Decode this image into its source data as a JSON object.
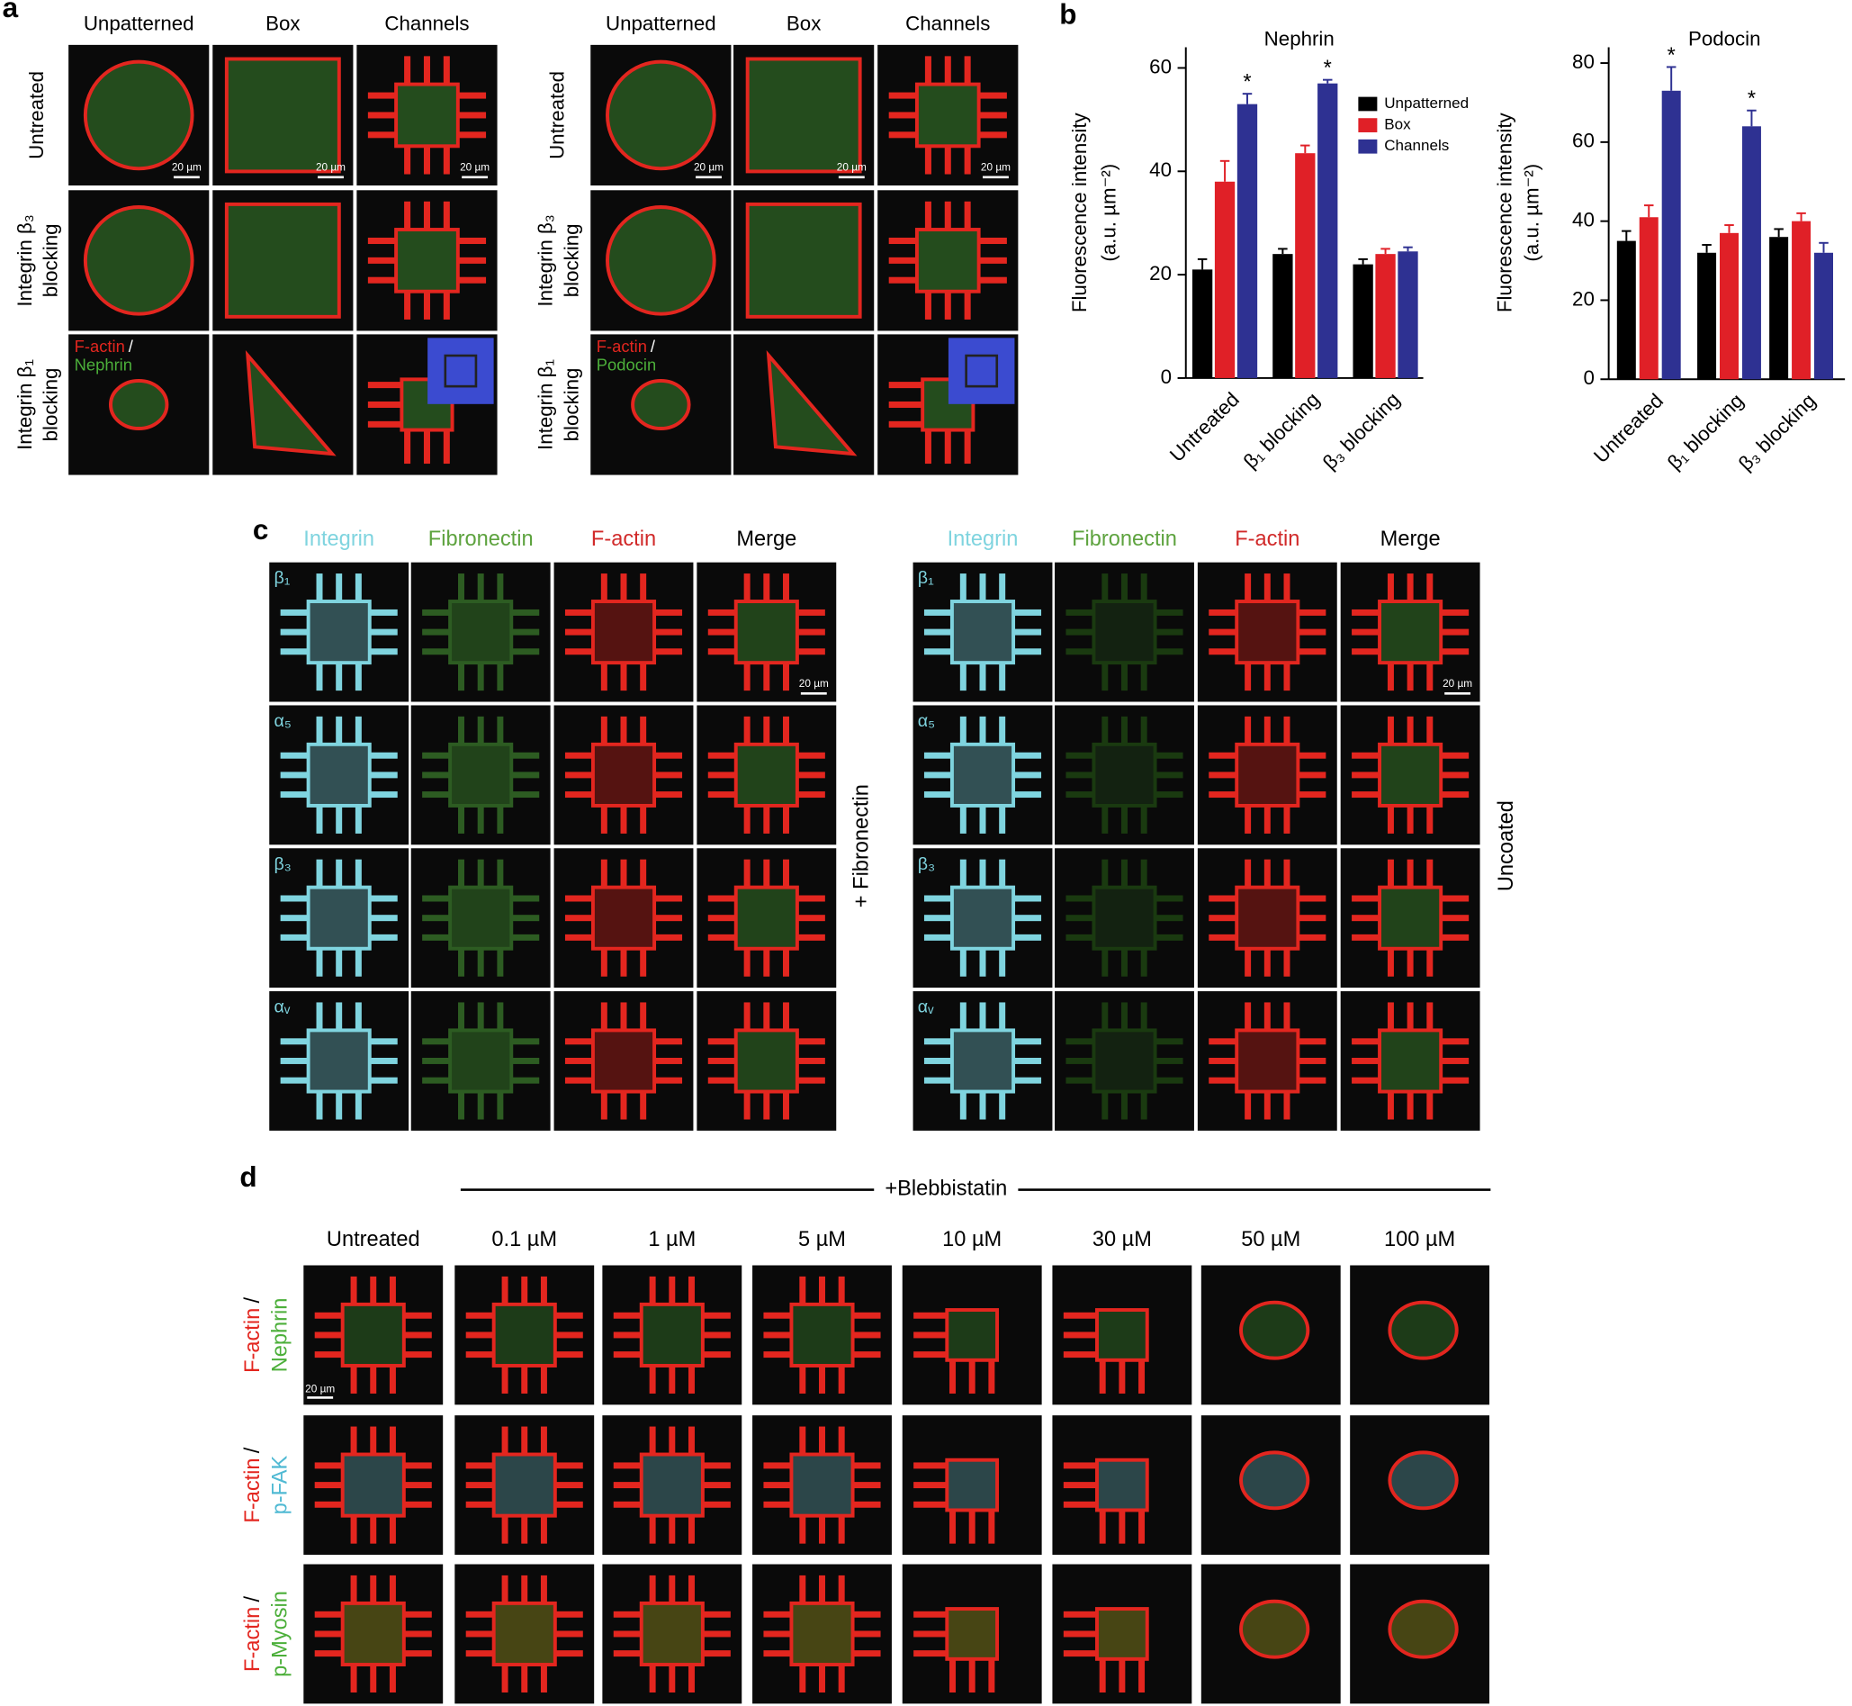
{
  "panel_a": {
    "label": "a",
    "columns": [
      "Unpatterned",
      "Box",
      "Channels"
    ],
    "rows": [
      [
        "Untreated"
      ],
      [
        "Integrin β₃",
        "blocking"
      ],
      [
        "Integrin β₁",
        "blocking"
      ]
    ],
    "scale_bar": "20 µm",
    "stains_left": [
      "F-actin",
      "/",
      "Nephrin"
    ],
    "stains_right": [
      "F-actin",
      "/",
      "Podocin"
    ]
  },
  "panel_b": {
    "label": "b"
  },
  "chart_data": [
    {
      "type": "bar",
      "title": "Nephrin",
      "y_label": [
        "Fluorescence intensity",
        "(a.u. µm⁻²)"
      ],
      "categories": [
        "Untreated",
        "β₁ blocking",
        "β₃ blocking"
      ],
      "series": [
        {
          "name": "Unpatterned",
          "color": "#000000",
          "values": [
            21,
            24,
            22
          ],
          "errors": [
            2,
            1,
            1
          ]
        },
        {
          "name": "Box",
          "color": "#e02027",
          "values": [
            38,
            43.5,
            24
          ],
          "errors": [
            4,
            1.5,
            1
          ]
        },
        {
          "name": "Channels",
          "color": "#2e3192",
          "values": [
            53,
            57,
            24.5
          ],
          "errors": [
            2,
            0.7,
            0.8
          ],
          "annotations": [
            "*",
            "*",
            null
          ]
        }
      ],
      "ylim": [
        0,
        64
      ],
      "yticks": [
        0,
        20,
        40,
        60
      ],
      "legend": "upper right"
    },
    {
      "type": "bar",
      "title": "Podocin",
      "y_label": [
        "Fluorescence intensity",
        "(a.u. µm⁻²)"
      ],
      "categories": [
        "Untreated",
        "β₁ blocking",
        "β₃ blocking"
      ],
      "series": [
        {
          "color": "#000000",
          "values": [
            35,
            32,
            36
          ],
          "errors": [
            2.5,
            2,
            2
          ]
        },
        {
          "color": "#e02027",
          "values": [
            41,
            37,
            40
          ],
          "errors": [
            3,
            2,
            2
          ]
        },
        {
          "color": "#2e3192",
          "values": [
            73,
            64,
            32
          ],
          "errors": [
            6,
            4,
            2.5
          ],
          "annotations": [
            "*",
            "*",
            null
          ]
        }
      ],
      "ylim": [
        0,
        84
      ],
      "yticks": [
        0,
        20,
        40,
        60,
        80
      ]
    }
  ],
  "panel_c": {
    "label": "c",
    "columns": [
      "Integrin",
      "Fibronectin",
      "F-actin",
      "Merge"
    ],
    "rows": [
      "β₁",
      "α₅",
      "β₃",
      "αᵥ"
    ],
    "conditions": [
      "+ Fibronectin",
      "Uncoated"
    ],
    "scale_bar": "20 µm"
  },
  "panel_d": {
    "label": "d",
    "treatment": "+Blebbistatin",
    "columns": [
      "Untreated",
      "0.1 µM",
      "1 µM",
      "5 µM",
      "10 µM",
      "30 µM",
      "50 µM",
      "100 µM"
    ],
    "rows": [
      [
        "F-actin",
        "/",
        "Nephrin"
      ],
      [
        "F-actin",
        "/",
        "p-FAK"
      ],
      [
        "F-actin",
        "/",
        "p-Myosin"
      ]
    ],
    "scale_bar": "20 µm"
  }
}
